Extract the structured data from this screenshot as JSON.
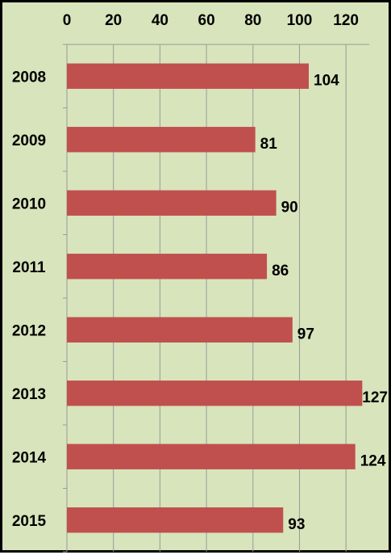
{
  "chart_data": {
    "type": "bar",
    "orientation": "horizontal",
    "categories": [
      "2008",
      "2009",
      "2010",
      "2011",
      "2012",
      "2013",
      "2014",
      "2015"
    ],
    "values": [
      104,
      81,
      90,
      86,
      97,
      127,
      124,
      93
    ],
    "data_labels": [
      "104",
      "81",
      "90",
      "86",
      "97",
      "127",
      "124",
      "93"
    ],
    "title": "",
    "xlabel": "",
    "ylabel": "",
    "xlim": [
      0,
      130
    ],
    "x_ticks": [
      0,
      20,
      40,
      60,
      80,
      100,
      120
    ],
    "x_tick_labels": [
      "0",
      "20",
      "40",
      "60",
      "80",
      "100",
      "120"
    ],
    "x_axis_position": "top",
    "grid": true,
    "legend": "none"
  },
  "colors": {
    "background": "#d8e4bc",
    "bar": "#c0504d",
    "gridline": "#9a9a9a",
    "frame": "#000000"
  }
}
